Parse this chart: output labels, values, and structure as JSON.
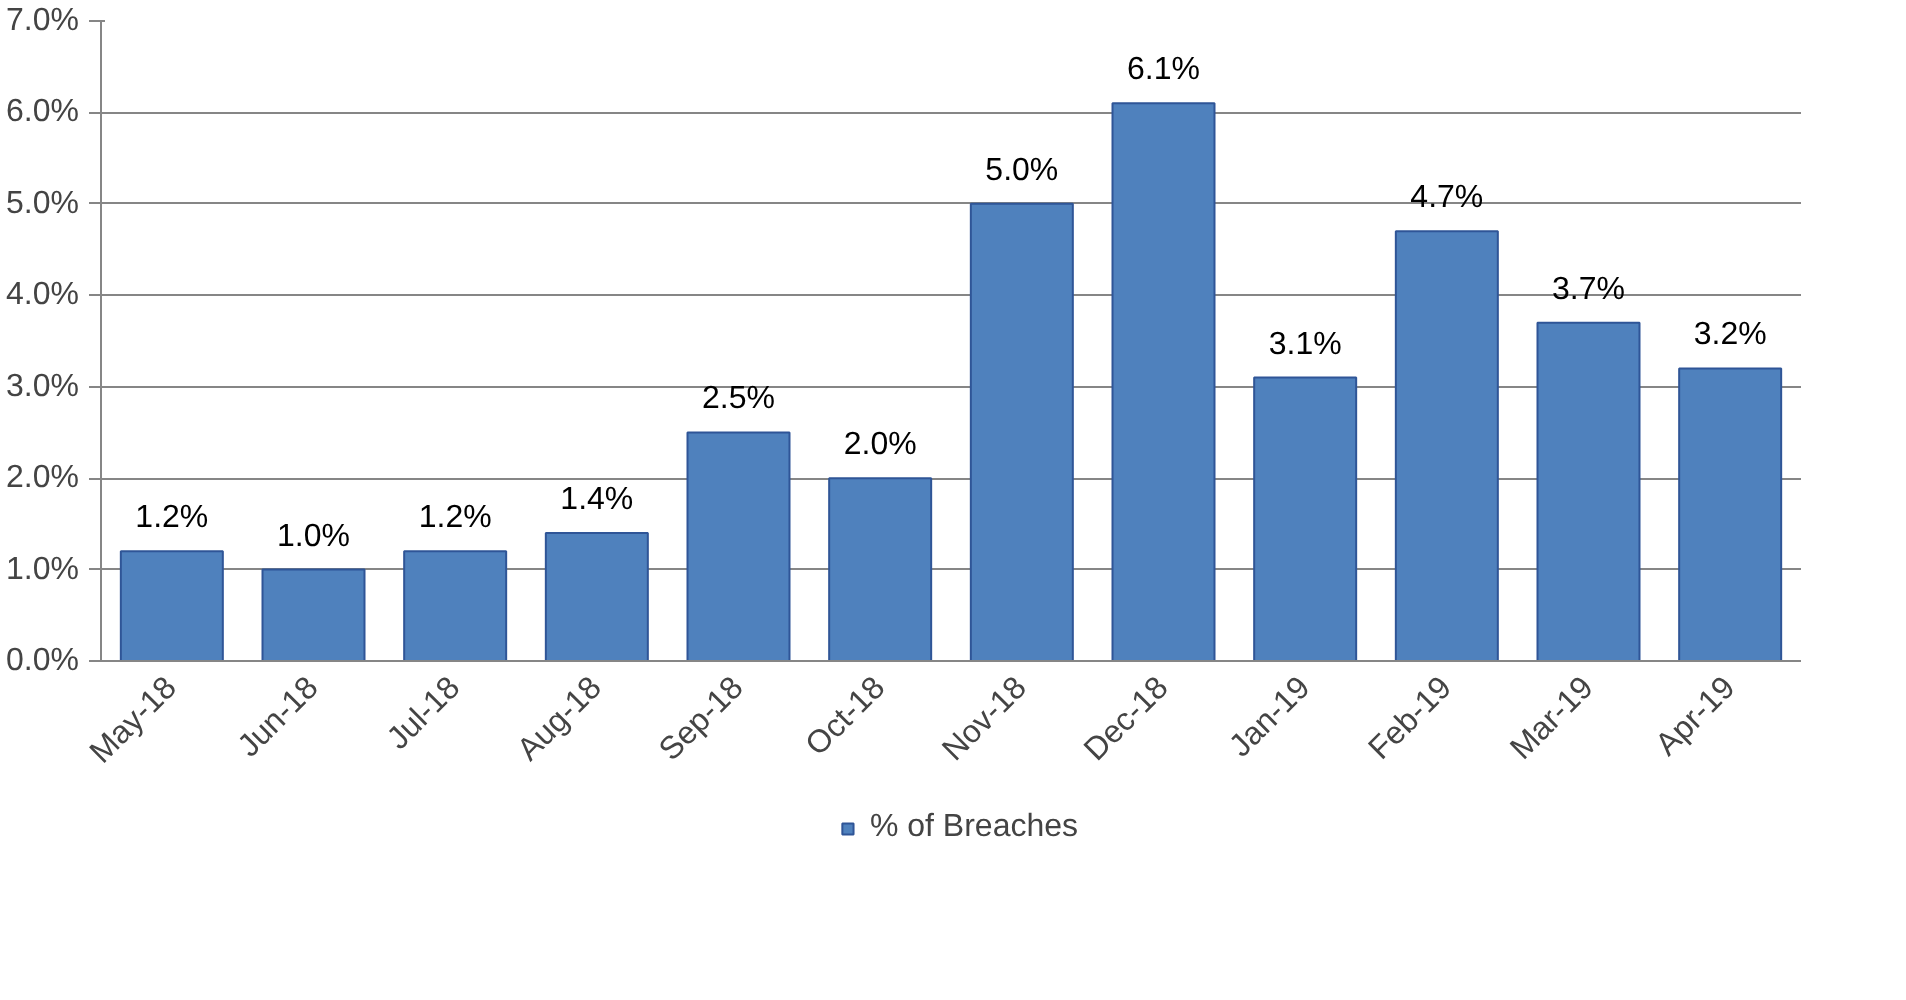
{
  "chart_data": {
    "type": "bar",
    "categories": [
      "May-18",
      "Jun-18",
      "Jul-18",
      "Aug-18",
      "Sep-18",
      "Oct-18",
      "Nov-18",
      "Dec-18",
      "Jan-19",
      "Feb-19",
      "Mar-19",
      "Apr-19"
    ],
    "series": [
      {
        "name": "% of Breaches",
        "color": "#4f81bd",
        "values": [
          1.2,
          1.0,
          1.2,
          1.4,
          2.5,
          2.0,
          5.0,
          6.1,
          3.1,
          4.7,
          3.7,
          3.2
        ],
        "value_labels": [
          "1.2%",
          "1.0%",
          "1.2%",
          "1.4%",
          "2.5%",
          "2.0%",
          "5.0%",
          "6.1%",
          "3.1%",
          "4.7%",
          "3.7%",
          "3.2%"
        ]
      }
    ],
    "ylim": [
      0,
      7
    ],
    "yticks": [
      {
        "value": 0,
        "label": "0.0%"
      },
      {
        "value": 1,
        "label": "1.0%"
      },
      {
        "value": 2,
        "label": "2.0%"
      },
      {
        "value": 3,
        "label": "3.0%"
      },
      {
        "value": 4,
        "label": "4.0%"
      },
      {
        "value": 5,
        "label": "5.0%"
      },
      {
        "value": 6,
        "label": "6.0%"
      },
      {
        "value": 7,
        "label": "7.0%"
      }
    ],
    "grid": "y",
    "legend": "bottom"
  }
}
